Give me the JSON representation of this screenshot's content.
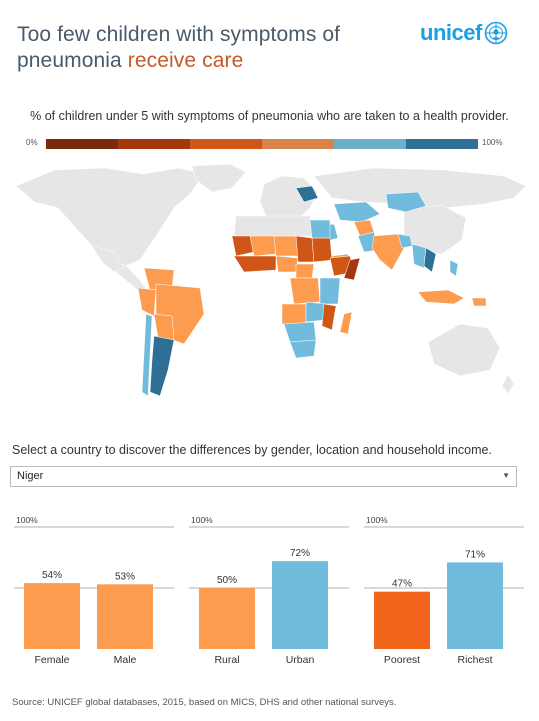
{
  "header": {
    "title_part1": "Too few children with symptoms of",
    "title_part2": "pneumonia",
    "title_accent": "receive care",
    "logo_text": "unicef"
  },
  "legend": {
    "caption": "% of children under 5 with symptoms of pneumonia who are taken to a health provider.",
    "min_label": "0%",
    "max_label": "100%",
    "colors": [
      "#7a2a0e",
      "#a3380e",
      "#cf5614",
      "#d9834a",
      "#6faecb",
      "#2f6f95"
    ]
  },
  "selector": {
    "prompt": "Select a country to discover the differences by gender, location and household income.",
    "selected": "Niger"
  },
  "colors": {
    "light_orange": "#fd9b4f",
    "dark_orange": "#f0641b",
    "blue": "#71bbdc",
    "map_no_data": "#e6e6e6"
  },
  "chart_data": [
    {
      "type": "bar",
      "categories": [
        "Female",
        "Male"
      ],
      "values": [
        54,
        53
      ],
      "value_labels": [
        "54%",
        "53%"
      ],
      "ylim": [
        0,
        100
      ],
      "top_label": "100%",
      "colors": [
        "#fd9b4f",
        "#fd9b4f"
      ]
    },
    {
      "type": "bar",
      "categories": [
        "Rural",
        "Urban"
      ],
      "values": [
        50,
        72
      ],
      "value_labels": [
        "50%",
        "72%"
      ],
      "ylim": [
        0,
        100
      ],
      "top_label": "100%",
      "colors": [
        "#fd9b4f",
        "#71bbdc"
      ]
    },
    {
      "type": "bar",
      "categories": [
        "Poorest",
        "Richest"
      ],
      "values": [
        47,
        71
      ],
      "value_labels": [
        "47%",
        "71%"
      ],
      "ylim": [
        0,
        100
      ],
      "top_label": "100%",
      "colors": [
        "#f0641b",
        "#71bbdc"
      ]
    }
  ],
  "footer": {
    "source": "Source: UNICEF global databases, 2015, based on MICS, DHS and other national surveys."
  }
}
